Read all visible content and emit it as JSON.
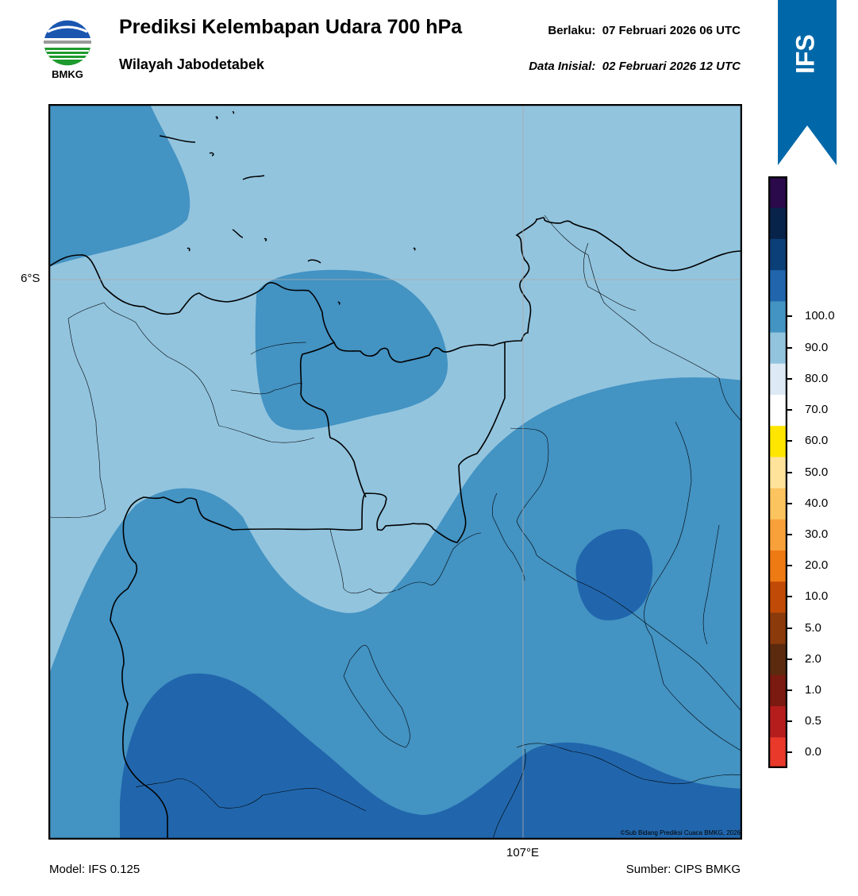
{
  "header": {
    "title": "Prediksi Kelembapan Udara 700 hPa",
    "subtitle": "Wilayah Jabodetabek",
    "valid_label": "Berlaku:",
    "valid_value": "07 Februari 2026 06 UTC",
    "init_label": "Data Inisial:",
    "init_value": "02 Februari 2026 12 UTC"
  },
  "logo": {
    "text": "BMKG",
    "icon": "bmkg-logo"
  },
  "ribbon": {
    "text": "IFS",
    "color": "#0068a8"
  },
  "map": {
    "lat_label": "6°S",
    "lon_label": "107°E",
    "credit": "©Sub Bidang Prediksi Cuaca BMKG, 2026",
    "fill_colors": {
      "60_70": "#92c4de",
      "70_80": "#4393c3",
      "80_90": "#2166ac"
    }
  },
  "colorbar": {
    "colors_bottom_to_top": [
      "#e8392a",
      "#b51d1d",
      "#7a1a10",
      "#5c2a0e",
      "#8b3a0c",
      "#c04a06",
      "#ee7a13",
      "#f8a13a",
      "#fcc45e",
      "#ffe39b",
      "#ffe600",
      "#ffffff",
      "#ddeaf5",
      "#92c4de",
      "#4393c3",
      "#2166ac",
      "#0b3f78",
      "#08234a",
      "#2a0a4a"
    ],
    "labels": [
      "0.0",
      "0.5",
      "1.0",
      "2.0",
      "5.0",
      "10.0",
      "20.0",
      "30.0",
      "40.0",
      "50.0",
      "60.0",
      "70.0",
      "80.0",
      "90.0",
      "100.0"
    ]
  },
  "footer": {
    "model": "Model: IFS 0.125",
    "source": "Sumber: CIPS BMKG"
  }
}
